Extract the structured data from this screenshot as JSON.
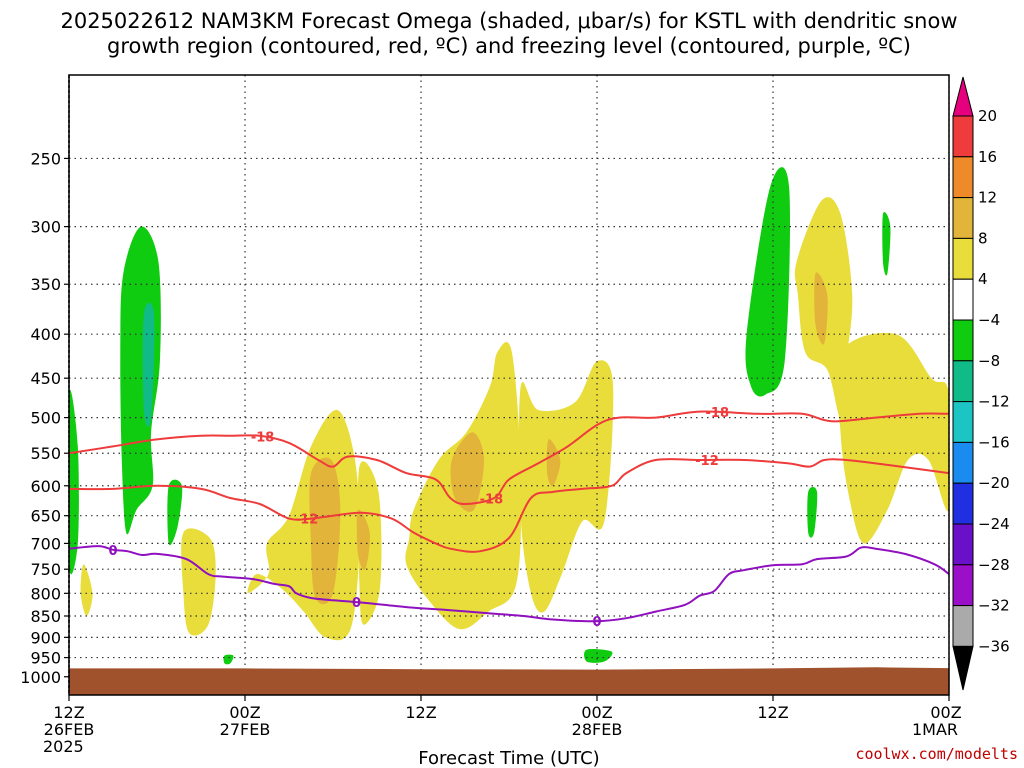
{
  "chart_data": {
    "type": "heatmap",
    "title_line1": "2025022612 NAM3KM Forecast Omega (shaded, μbar/s) for KSTL with dendritic snow",
    "title_line2": "growth region (contoured, red, ºC) and freezing level (contoured, purple, ºC)",
    "xlabel": "Forecast Time (UTC)",
    "credit": "coolwx.com/modelts",
    "y_scale": "log-pressure (hPa, inverted)",
    "ylim": [
      200,
      1050
    ],
    "y_ticks": [
      250,
      300,
      350,
      400,
      450,
      500,
      550,
      600,
      650,
      700,
      750,
      800,
      850,
      900,
      950,
      1000
    ],
    "y_tick_labels": [
      "250",
      "300",
      "350",
      "400",
      "450",
      "500",
      "550",
      "600",
      "650",
      "700",
      "750",
      "800",
      "850",
      "900",
      "950",
      "1000"
    ],
    "x_range_hours": [
      0,
      60
    ],
    "x_ticks": [
      {
        "hour": 0,
        "line1": "12Z",
        "line2": "26FEB",
        "line3": "2025"
      },
      {
        "hour": 12,
        "line1": "00Z",
        "line2": "27FEB",
        "line3": ""
      },
      {
        "hour": 24,
        "line1": "12Z",
        "line2": "",
        "line3": ""
      },
      {
        "hour": 36,
        "line1": "00Z",
        "line2": "28FEB",
        "line3": ""
      },
      {
        "hour": 48,
        "line1": "12Z",
        "line2": "",
        "line3": ""
      },
      {
        "hour": 60,
        "line1": "00Z",
        "line2": "1MAR",
        "line3": ""
      }
    ],
    "grid": true,
    "colorbar": {
      "position": "right",
      "labels": [
        "20",
        "16",
        "12",
        "8",
        "4",
        "−4",
        "−8",
        "−12",
        "−16",
        "−20",
        "−24",
        "−28",
        "−32",
        "−36"
      ],
      "colors": [
        "#e6007e",
        "#ee3b3b",
        "#ee8a2a",
        "#e3b43a",
        "#e9dd3c",
        "#ffffff",
        "#10cc10",
        "#11bb88",
        "#1cc4c4",
        "#1a8cf0",
        "#2030e0",
        "#6a10c8",
        "#9c0fc8",
        "#aaaaaa",
        "#000000"
      ]
    },
    "shading_colors": {
      "light_yellow": "#e9dd3c",
      "orange": "#e3b43a",
      "green": "#10cc10",
      "teal": "#11bb88",
      "ground": "#a0522d"
    },
    "omega_regions": [
      {
        "level": "4",
        "color": "#e9dd3c",
        "points": [
          [
            13.5,
            700
          ],
          [
            15,
            650
          ],
          [
            16.5,
            540
          ],
          [
            18.3,
            490
          ],
          [
            19.5,
            560
          ],
          [
            19.8,
            700
          ],
          [
            19.2,
            880
          ],
          [
            17.5,
            900
          ],
          [
            16,
            840
          ],
          [
            14.5,
            790
          ],
          [
            12.8,
            760
          ],
          [
            12.2,
            800
          ],
          [
            13.6,
            760
          ]
        ]
      },
      {
        "level": "4",
        "color": "#e9dd3c",
        "points": [
          [
            19.8,
            570
          ],
          [
            21.1,
            610
          ],
          [
            21.2,
            790
          ],
          [
            20.1,
            870
          ],
          [
            19.8,
            780
          ]
        ]
      },
      {
        "level": "4",
        "color": "#e9dd3c",
        "points": [
          [
            7.8,
            680
          ],
          [
            9.6,
            690
          ],
          [
            10,
            760
          ],
          [
            9.5,
            870
          ],
          [
            8.2,
            890
          ],
          [
            7.8,
            800
          ]
        ]
      },
      {
        "level": "4",
        "color": "#e9dd3c",
        "points": [
          [
            1,
            740
          ],
          [
            1.6,
            800
          ],
          [
            1.2,
            850
          ],
          [
            0.8,
            800
          ]
        ]
      },
      {
        "level": "4",
        "color": "#e9dd3c",
        "points": [
          [
            23.5,
            640
          ],
          [
            25.2,
            560
          ],
          [
            27.1,
            520
          ],
          [
            28.7,
            460
          ],
          [
            29.2,
            420
          ],
          [
            30.2,
            420
          ],
          [
            30.8,
            580
          ],
          [
            30.5,
            780
          ],
          [
            28.6,
            840
          ],
          [
            26.6,
            880
          ],
          [
            24.4,
            810
          ],
          [
            23,
            740
          ],
          [
            23.2,
            690
          ]
        ]
      },
      {
        "level": "4",
        "color": "#e9dd3c",
        "points": [
          [
            30.8,
            460
          ],
          [
            32,
            490
          ],
          [
            34.5,
            480
          ],
          [
            36,
            430
          ],
          [
            37.1,
            460
          ],
          [
            36.5,
            660
          ],
          [
            35,
            660
          ],
          [
            33.6,
            760
          ],
          [
            32.4,
            840
          ],
          [
            31.5,
            800
          ],
          [
            30.8,
            650
          ]
        ]
      },
      {
        "level": "4",
        "color": "#e9dd3c",
        "points": [
          [
            49.6,
            330
          ],
          [
            51.3,
            280
          ],
          [
            52.6,
            290
          ],
          [
            53.4,
            360
          ],
          [
            53,
            430
          ],
          [
            52.6,
            500
          ],
          [
            51.7,
            440
          ],
          [
            50.2,
            420
          ],
          [
            49.7,
            360
          ]
        ]
      },
      {
        "level": "4",
        "color": "#e9dd3c",
        "points": [
          [
            52.6,
            420
          ],
          [
            56.4,
            400
          ],
          [
            58.8,
            450
          ],
          [
            60,
            470
          ],
          [
            60,
            640
          ],
          [
            58.6,
            560
          ],
          [
            57.2,
            560
          ],
          [
            55.8,
            640
          ],
          [
            54.2,
            700
          ],
          [
            53.2,
            620
          ],
          [
            52.6,
            520
          ]
        ]
      },
      {
        "level": "8",
        "color": "#e3b43a",
        "points": [
          [
            16.5,
            580
          ],
          [
            17.9,
            560
          ],
          [
            18.5,
            640
          ],
          [
            18,
            800
          ],
          [
            16.8,
            810
          ],
          [
            16.5,
            700
          ]
        ]
      },
      {
        "level": "8",
        "color": "#e3b43a",
        "points": [
          [
            19.7,
            640
          ],
          [
            20.5,
            680
          ],
          [
            20.2,
            750
          ],
          [
            19.7,
            720
          ]
        ]
      },
      {
        "level": "8",
        "color": "#e3b43a",
        "points": [
          [
            26.1,
            560
          ],
          [
            27.5,
            520
          ],
          [
            28.3,
            560
          ],
          [
            27.6,
            640
          ],
          [
            26.3,
            620
          ]
        ]
      },
      {
        "level": "8",
        "color": "#e3b43a",
        "points": [
          [
            32.7,
            530
          ],
          [
            33.5,
            560
          ],
          [
            33,
            600
          ],
          [
            32.6,
            580
          ]
        ]
      },
      {
        "level": "8",
        "color": "#e3b43a",
        "points": [
          [
            50.9,
            340
          ],
          [
            51.7,
            360
          ],
          [
            51.5,
            410
          ],
          [
            50.9,
            390
          ]
        ]
      },
      {
        "level": "-4",
        "color": "#10cc10",
        "points": [
          [
            3.7,
            340
          ],
          [
            4.9,
            300
          ],
          [
            6.1,
            330
          ],
          [
            6.2,
            430
          ],
          [
            5.6,
            520
          ],
          [
            5.7,
            600
          ],
          [
            4.6,
            640
          ],
          [
            3.9,
            680
          ],
          [
            3.6,
            560
          ],
          [
            3.5,
            420
          ]
        ]
      },
      {
        "level": "-4",
        "color": "#10cc10",
        "points": [
          [
            0,
            470
          ],
          [
            0.6,
            540
          ],
          [
            0.6,
            700
          ],
          [
            0,
            740
          ]
        ]
      },
      {
        "level": "-4",
        "color": "#10cc10",
        "points": [
          [
            6.8,
            600
          ],
          [
            7.7,
            600
          ],
          [
            7.4,
            670
          ],
          [
            6.8,
            700
          ]
        ]
      },
      {
        "level": "-4",
        "color": "#10cc10",
        "points": [
          [
            46.2,
            400
          ],
          [
            47.8,
            270
          ],
          [
            49.1,
            270
          ],
          [
            48.8,
            430
          ],
          [
            47.5,
            470
          ],
          [
            46.5,
            460
          ]
        ]
      },
      {
        "level": "-4",
        "color": "#10cc10",
        "points": [
          [
            55.5,
            290
          ],
          [
            56,
            300
          ],
          [
            55.8,
            340
          ],
          [
            55.5,
            330
          ]
        ]
      },
      {
        "level": "-4",
        "color": "#10cc10",
        "points": [
          [
            50.4,
            610
          ],
          [
            51,
            610
          ],
          [
            50.8,
            680
          ],
          [
            50.4,
            680
          ]
        ]
      },
      {
        "level": "-4",
        "color": "#10cc10",
        "points": [
          [
            35.3,
            930
          ],
          [
            37,
            935
          ],
          [
            36.5,
            960
          ],
          [
            35.3,
            960
          ]
        ]
      },
      {
        "level": "-4",
        "color": "#10cc10",
        "points": [
          [
            10.6,
            945
          ],
          [
            11.2,
            945
          ],
          [
            11,
            965
          ],
          [
            10.6,
            965
          ]
        ]
      },
      {
        "level": "-8",
        "color": "#11bb88",
        "points": [
          [
            5.1,
            380
          ],
          [
            5.8,
            380
          ],
          [
            5.6,
            500
          ],
          [
            5.1,
            490
          ]
        ]
      }
    ],
    "series": [
      {
        "name": "-18",
        "color": "#ee3b3b",
        "points": [
          [
            0,
            550
          ],
          [
            3,
            540
          ],
          [
            6,
            530
          ],
          [
            9,
            525
          ],
          [
            11,
            525
          ],
          [
            13,
            525
          ],
          [
            15,
            535
          ],
          [
            17,
            560
          ],
          [
            18,
            570
          ],
          [
            19,
            555
          ],
          [
            21,
            560
          ],
          [
            23,
            580
          ],
          [
            25,
            590
          ],
          [
            26,
            620
          ],
          [
            27,
            630
          ],
          [
            29,
            620
          ],
          [
            30,
            590
          ],
          [
            32,
            565
          ],
          [
            34,
            540
          ],
          [
            36,
            510
          ],
          [
            37.5,
            500
          ],
          [
            40,
            500
          ],
          [
            43,
            492
          ],
          [
            47,
            495
          ],
          [
            50,
            495
          ],
          [
            52,
            505
          ],
          [
            55,
            500
          ],
          [
            58,
            495
          ],
          [
            60,
            495
          ]
        ]
      },
      {
        "name": "-12",
        "color": "#ee3b3b",
        "points": [
          [
            0,
            605
          ],
          [
            3,
            605
          ],
          [
            6,
            600
          ],
          [
            9,
            605
          ],
          [
            11,
            620
          ],
          [
            13,
            630
          ],
          [
            15,
            655
          ],
          [
            16.5,
            655
          ],
          [
            18,
            650
          ],
          [
            20,
            645
          ],
          [
            22,
            655
          ],
          [
            23.5,
            680
          ],
          [
            25,
            700
          ],
          [
            26,
            710
          ],
          [
            28,
            715
          ],
          [
            30,
            690
          ],
          [
            31.5,
            620
          ],
          [
            33,
            610
          ],
          [
            35,
            605
          ],
          [
            37,
            600
          ],
          [
            38,
            580
          ],
          [
            40,
            560
          ],
          [
            43,
            560
          ],
          [
            46,
            560
          ],
          [
            49,
            565
          ],
          [
            50.5,
            570
          ],
          [
            51.5,
            560
          ],
          [
            53,
            560
          ],
          [
            56,
            568
          ],
          [
            60,
            580
          ]
        ]
      },
      {
        "name": "0",
        "color": "#9010c0",
        "points": [
          [
            0,
            710
          ],
          [
            2,
            705
          ],
          [
            3,
            712
          ],
          [
            4,
            715
          ],
          [
            5,
            722
          ],
          [
            6,
            720
          ],
          [
            8,
            730
          ],
          [
            9.5,
            760
          ],
          [
            10.5,
            765
          ],
          [
            12.5,
            770
          ],
          [
            14,
            780
          ],
          [
            15,
            785
          ],
          [
            15.5,
            800
          ],
          [
            16.5,
            810
          ],
          [
            18,
            815
          ],
          [
            20,
            820
          ],
          [
            23,
            830
          ],
          [
            26,
            837
          ],
          [
            29,
            845
          ],
          [
            31,
            850
          ],
          [
            33,
            858
          ],
          [
            36,
            862
          ],
          [
            38,
            855
          ],
          [
            40,
            840
          ],
          [
            42,
            825
          ],
          [
            43,
            805
          ],
          [
            44,
            795
          ],
          [
            45,
            760
          ],
          [
            46,
            752
          ],
          [
            48,
            742
          ],
          [
            50,
            740
          ],
          [
            51,
            730
          ],
          [
            53,
            725
          ],
          [
            54,
            708
          ],
          [
            55,
            710
          ],
          [
            57,
            720
          ],
          [
            59,
            740
          ],
          [
            60,
            760
          ]
        ]
      }
    ],
    "contour_labels": [
      {
        "text": "-18",
        "hour": 13.2,
        "p": 525,
        "series": 0
      },
      {
        "text": "-12",
        "hour": 16.2,
        "p": 653,
        "series": 1
      },
      {
        "text": "-18",
        "hour": 28.8,
        "p": 620,
        "series": 0
      },
      {
        "text": "-18",
        "hour": 44.2,
        "p": 493,
        "series": 0
      },
      {
        "text": "-12",
        "hour": 43.5,
        "p": 560,
        "series": 1
      },
      {
        "text": "0",
        "hour": 3,
        "p": 712,
        "series": 2
      },
      {
        "text": "0",
        "hour": 19.6,
        "p": 820,
        "series": 2
      },
      {
        "text": "0",
        "hour": 36,
        "p": 862,
        "series": 2
      }
    ],
    "ground": {
      "top_levels": [
        [
          0,
          978
        ],
        [
          12,
          978
        ],
        [
          24,
          980
        ],
        [
          36,
          981
        ],
        [
          48,
          978
        ],
        [
          55,
          975
        ],
        [
          60,
          977
        ]
      ]
    }
  }
}
